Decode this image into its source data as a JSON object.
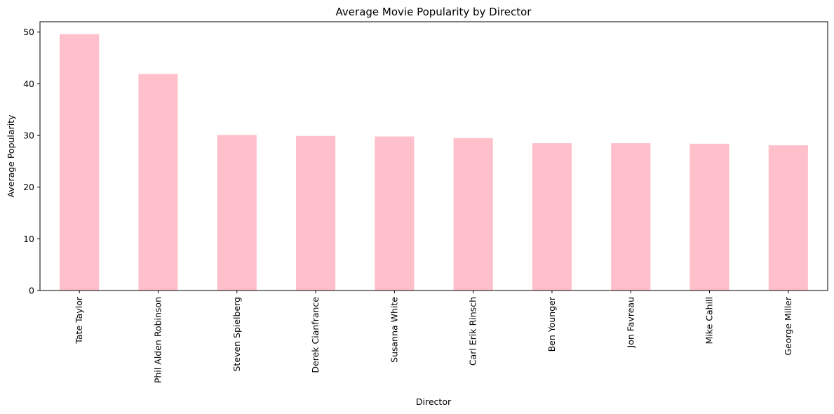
{
  "chart_data": {
    "type": "bar",
    "title": "Average Movie Popularity by Director",
    "xlabel": "Director",
    "ylabel": "Average Popularity",
    "categories": [
      "Tate Taylor",
      "Phil Alden Robinson",
      "Steven Spielberg",
      "Derek Cianfrance",
      "Susanna White",
      "Carl Erik Rinsch",
      "Ben Younger",
      "Jon Favreau",
      "Mike Cahill",
      "George Miller"
    ],
    "values": [
      49.6,
      41.9,
      30.1,
      29.9,
      29.8,
      29.5,
      28.5,
      28.5,
      28.4,
      28.1
    ],
    "ylim": [
      0,
      52
    ],
    "yticks": [
      0,
      10,
      20,
      30,
      40,
      50
    ],
    "grid": false,
    "legend": "none",
    "bar_color": "#ffc0cb",
    "axis_color": "#000000"
  }
}
